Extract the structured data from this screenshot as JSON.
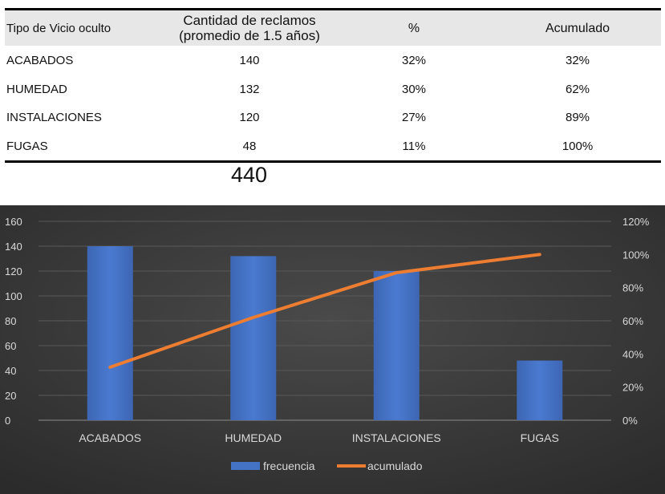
{
  "table": {
    "headers": [
      "Tipo de Vicio oculto",
      "Cantidad de reclamos",
      "(promedio de 1.5 años)",
      "%",
      "Acumulado"
    ],
    "rows": [
      [
        "ACABADOS",
        "140",
        "32%",
        "32%"
      ],
      [
        "HUMEDAD",
        "132",
        "30%",
        "62%"
      ],
      [
        "INSTALACIONES",
        "120",
        "27%",
        "89%"
      ],
      [
        "FUGAS",
        "48",
        "11%",
        "100%"
      ]
    ],
    "total": "440"
  },
  "chart_data": {
    "type": "bar",
    "categories": [
      "ACABADOS",
      "HUMEDAD",
      "INSTALACIONES",
      "FUGAS"
    ],
    "series": [
      {
        "name": "frecuencia",
        "type": "bar",
        "axis": "left",
        "values": [
          140,
          132,
          120,
          48
        ],
        "color": "#4472c4"
      },
      {
        "name": "acumulado",
        "type": "line",
        "axis": "right",
        "values": [
          0.32,
          0.62,
          0.89,
          1.0
        ],
        "color": "#ed7d31"
      }
    ],
    "y_left": {
      "range": [
        0,
        160
      ],
      "ticks": [
        "0",
        "20",
        "40",
        "60",
        "80",
        "100",
        "120",
        "140",
        "160"
      ]
    },
    "y_right": {
      "range": [
        0,
        1.2
      ],
      "ticks": [
        "0%",
        "20%",
        "40%",
        "60%",
        "80%",
        "100%",
        "120%"
      ]
    },
    "grid": true,
    "legend": "bottom",
    "background": "#404040"
  }
}
